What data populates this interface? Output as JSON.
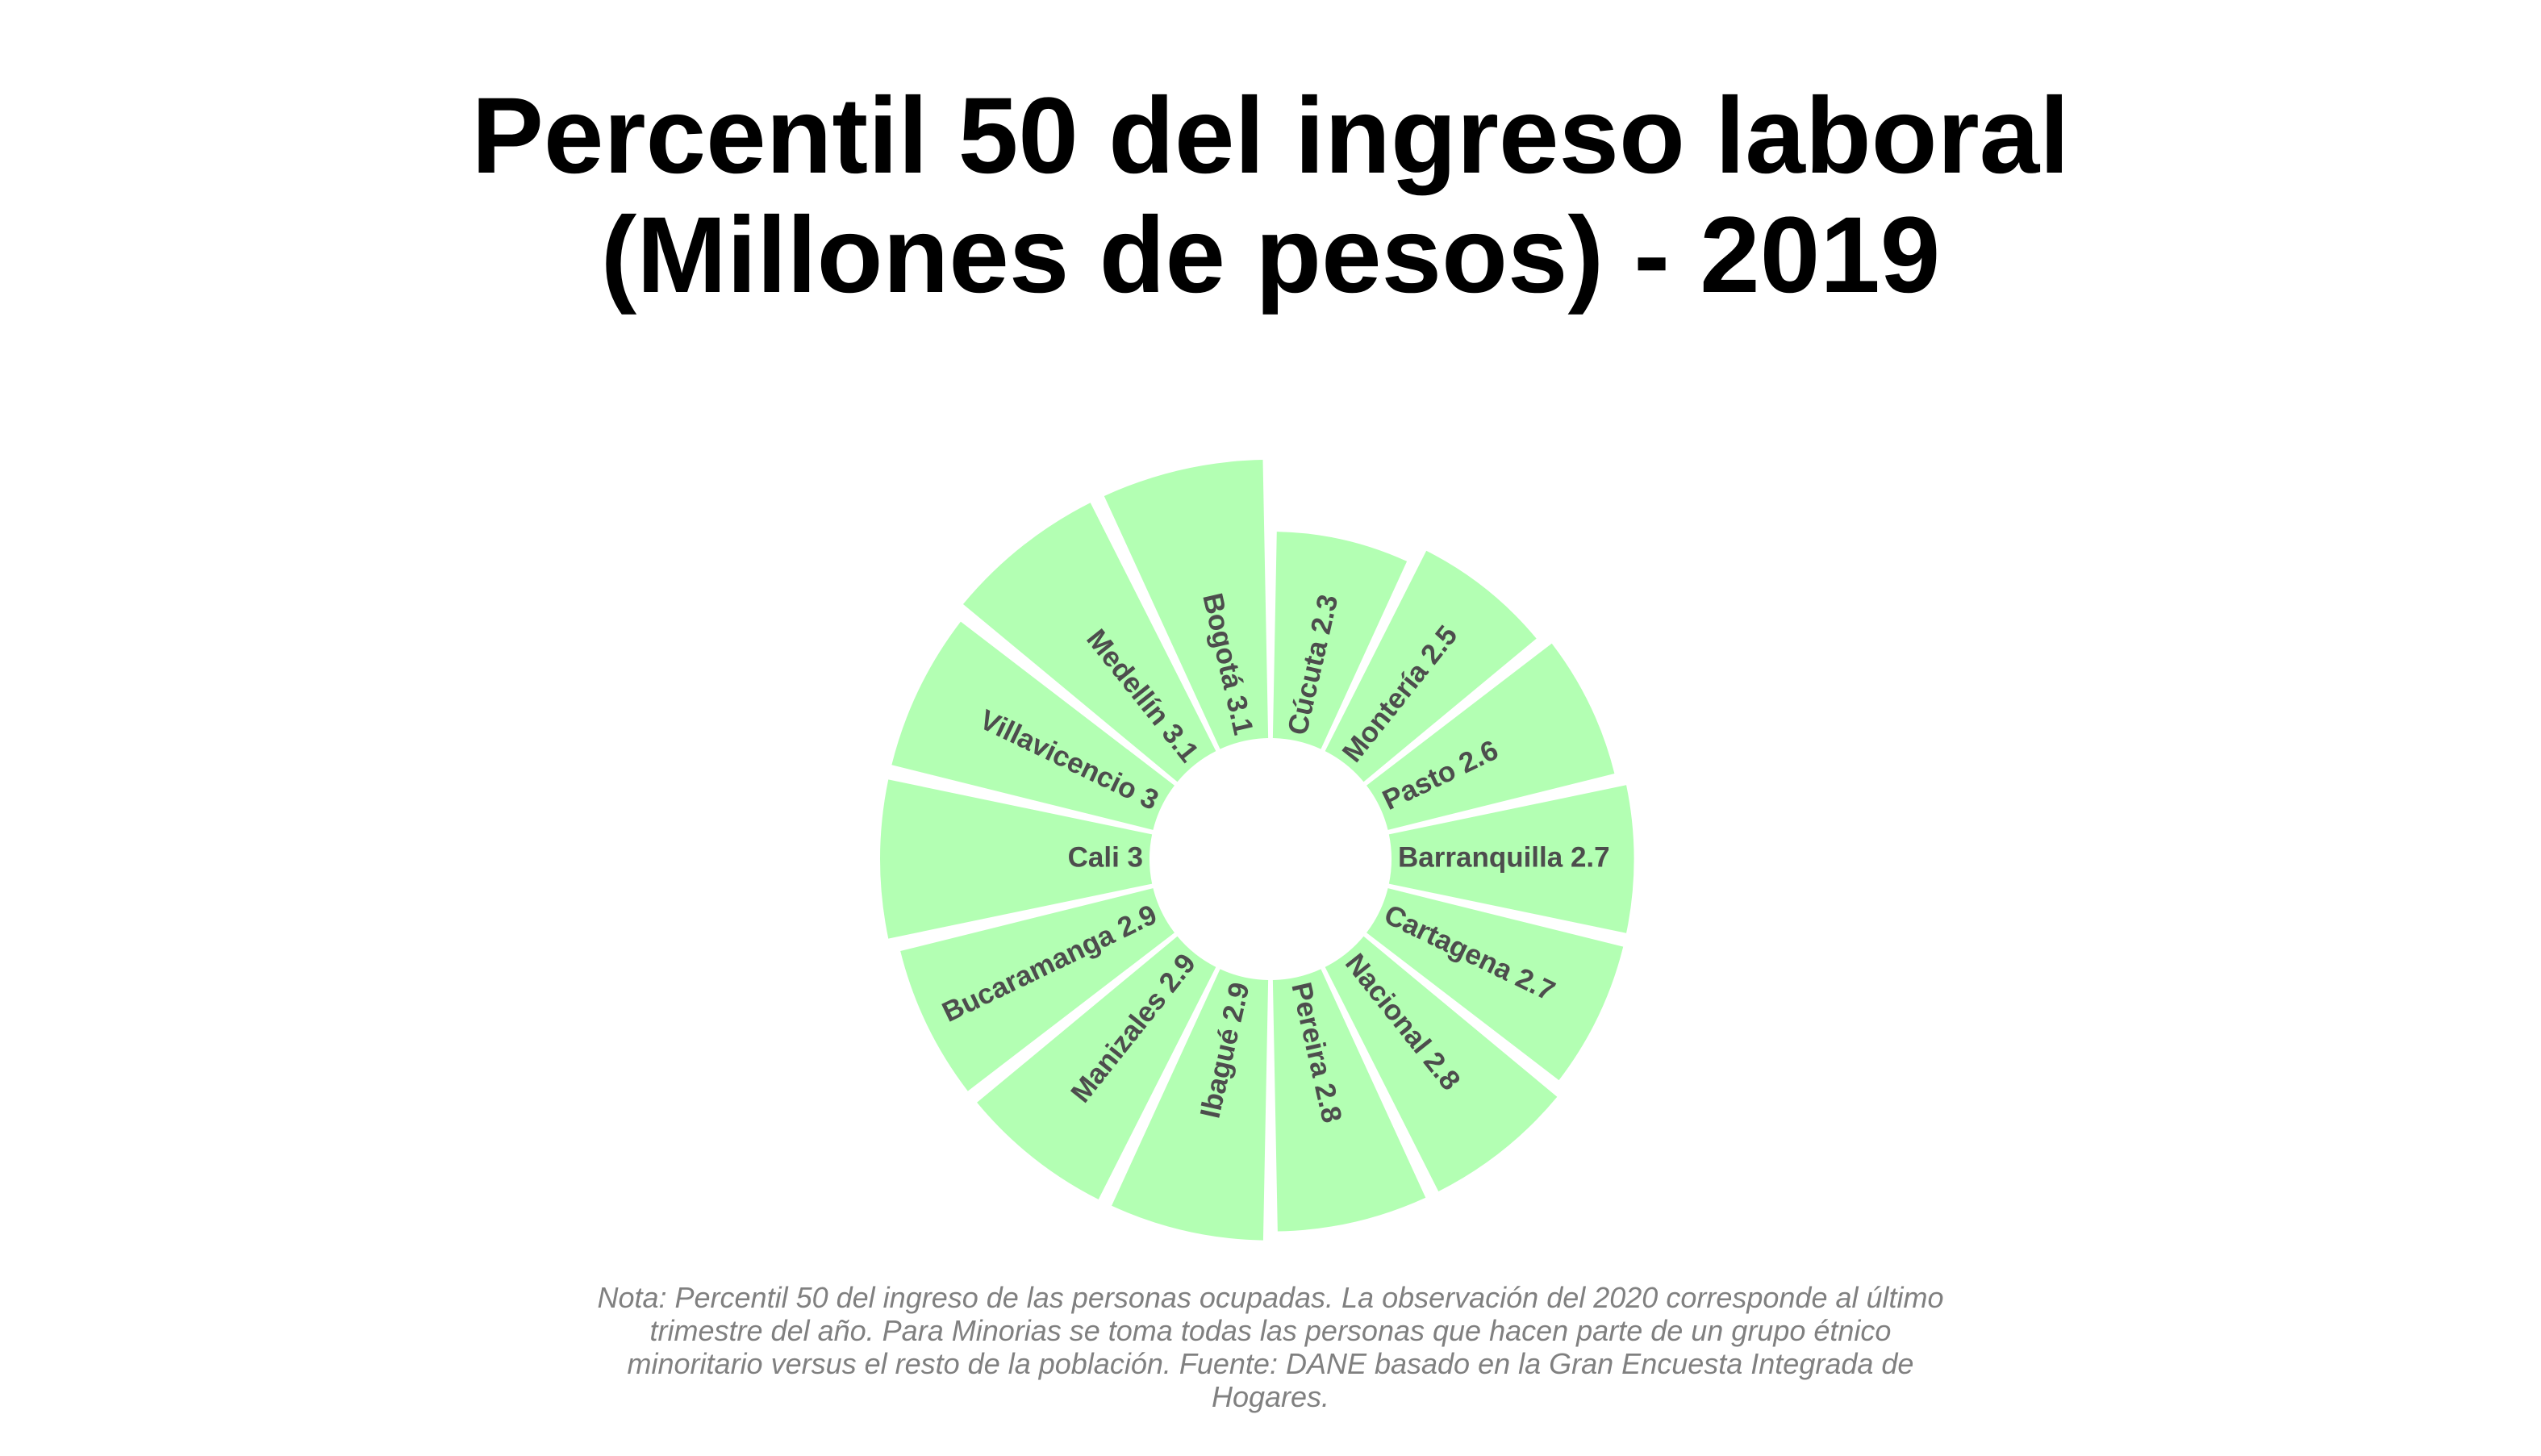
{
  "title": "Percentil 50 del ingreso laboral (Millones de pesos) - 2019",
  "note": "Nota: Percentil 50 del ingreso de las personas ocupadas. La observación del 2020 corresponde al último trimestre del año. Para Minorias se toma todas las personas que hacen parte de un grupo étnico minoritario versus el resto de la población. Fuente: DANE basado en la Gran Encuesta Integrada de Hogares.",
  "chart_data": {
    "type": "bar",
    "coord": "polar",
    "bar_color": "#b3ffb3",
    "label_color": "#4d4d4d",
    "categories": [
      "Cúcuta",
      "Montería",
      "Pasto",
      "Barranquilla",
      "Cartagena",
      "Nacional",
      "Pereira",
      "Ibagué",
      "Manizales",
      "Bucaramanga",
      "Cali",
      "Villavicencio",
      "Medellín",
      "Bogotá"
    ],
    "values": [
      2.3,
      2.5,
      2.6,
      2.7,
      2.7,
      2.8,
      2.8,
      2.9,
      2.9,
      2.9,
      3.0,
      3.0,
      3.1,
      3.1
    ],
    "labels": [
      "Cúcuta 2.3",
      "Montería 2.5",
      "Pasto 2.6",
      "Barranquilla 2.7",
      "Cartagena 2.7",
      "Nacional 2.8",
      "Pereira 2.8",
      "Ibagué 2.9",
      "Manizales 2.9",
      "Bucaramanga 2.9",
      "Cali 3",
      "Villavicencio 3",
      "Medellín 3.1",
      "Bogotá 3.1"
    ]
  }
}
